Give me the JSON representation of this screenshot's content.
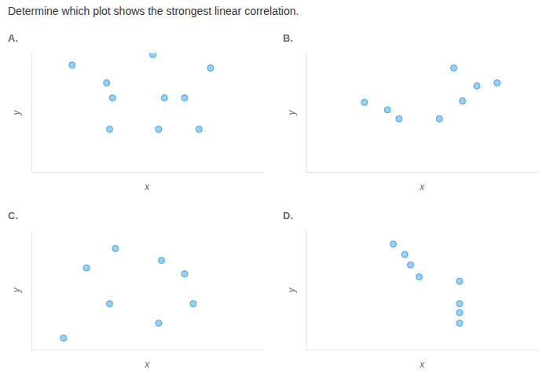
{
  "title": "Determine which plot shows the strongest linear correlation.",
  "chart_data": [
    {
      "type": "scatter",
      "title": "A.",
      "x_label": "x",
      "y_label": "y",
      "x": [
        -1.3,
        -0.7,
        0.1,
        1.1,
        -0.6,
        0.3,
        0.65,
        -0.65,
        0.2,
        0.9
      ],
      "values": [
        1.6,
        1.0,
        1.95,
        1.5,
        0.5,
        0.5,
        0.5,
        -0.55,
        -0.55,
        -0.55
      ],
      "xlim": [
        -2.0,
        2.0
      ],
      "ylim": [
        -2.0,
        2.0
      ],
      "tick_labels": false,
      "grid": false,
      "marker": "circle"
    },
    {
      "type": "scatter",
      "title": "B.",
      "x_label": "x",
      "y_label": "y",
      "x": [
        -1.0,
        -0.6,
        -0.4,
        0.3,
        0.7,
        1.3,
        0.55,
        0.95
      ],
      "values": [
        0.35,
        0.1,
        -0.2,
        -0.2,
        0.4,
        1.0,
        1.5,
        0.9
      ],
      "xlim": [
        -2.0,
        2.0
      ],
      "ylim": [
        -2.0,
        2.0
      ],
      "tick_labels": false,
      "grid": false,
      "marker": "circle"
    },
    {
      "type": "scatter",
      "title": "C.",
      "x_label": "x",
      "y_label": "y",
      "x": [
        -0.55,
        -1.05,
        0.25,
        0.65,
        0.8,
        -0.65,
        0.2,
        -1.45
      ],
      "values": [
        1.4,
        0.75,
        1.0,
        0.55,
        -0.45,
        -0.45,
        -1.1,
        -1.6
      ],
      "xlim": [
        -2.0,
        2.0
      ],
      "ylim": [
        -2.0,
        2.0
      ],
      "tick_labels": false,
      "grid": false,
      "marker": "circle"
    },
    {
      "type": "scatter",
      "title": "D.",
      "x_label": "x",
      "y_label": "y",
      "x": [
        -0.5,
        -0.3,
        -0.2,
        -0.05,
        0.65,
        0.65,
        0.65,
        0.65
      ],
      "values": [
        1.55,
        1.2,
        0.85,
        0.45,
        0.3,
        -0.45,
        -0.75,
        -1.1
      ],
      "xlim": [
        -2.0,
        2.0
      ],
      "ylim": [
        -2.0,
        2.0
      ],
      "tick_labels": false,
      "grid": false,
      "marker": "circle"
    }
  ]
}
